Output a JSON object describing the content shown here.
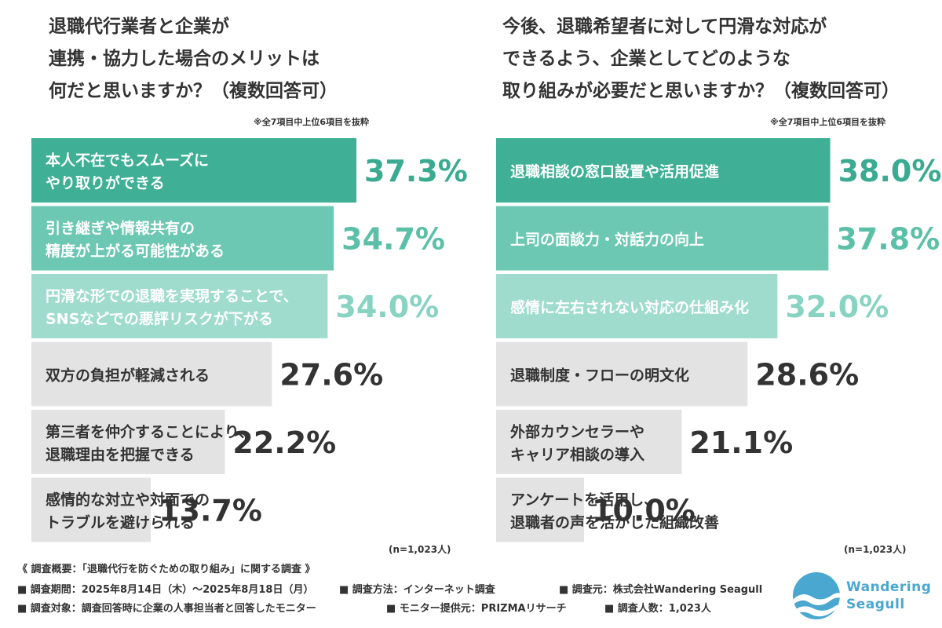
{
  "chart_data": [
    {
      "type": "bar",
      "orientation": "horizontal",
      "title": [
        "退職代行業者と企業が",
        "連携・協力した場合のメリットは",
        "何だと思いますか？（複数回答可）"
      ],
      "note": "※全7項目中上位6項目を抜粋",
      "categories": [
        [
          "本人不在でもスムーズに",
          "やり取りができる"
        ],
        [
          "引き継ぎや情報共有の",
          "精度が上がる可能性がある"
        ],
        [
          "円滑な形での退職を実現することで、",
          "SNSなどでの悪評リスクが下がる"
        ],
        [
          "双方の負担が軽減される"
        ],
        [
          "第三者を仲介することにより、",
          "退職理由を把握できる"
        ],
        [
          "感情的な対立や対面での",
          "トラブルを避けられる"
        ]
      ],
      "values": [
        37.3,
        34.7,
        34.0,
        27.6,
        22.2,
        13.7
      ],
      "value_labels": [
        "37.3%",
        "34.7%",
        "34.0%",
        "27.6%",
        "22.2%",
        "13.7%"
      ],
      "unit": "%",
      "sample": "(n=1,023人)"
    },
    {
      "type": "bar",
      "orientation": "horizontal",
      "title": [
        "今後、退職希望者に対して円滑な対応が",
        "できるよう、企業としてどのような",
        "取り組みが必要だと思いますか？（複数回答可）"
      ],
      "note": "※全7項目中上位6項目を抜粋",
      "categories": [
        [
          "退職相談の窓口設置や活用促進"
        ],
        [
          "上司の面談力・対話力の向上"
        ],
        [
          "感情に左右されない対応の仕組み化"
        ],
        [
          "退職制度・フローの明文化"
        ],
        [
          "外部カウンセラーや",
          "キャリア相談の導入"
        ],
        [
          "アンケートを活用し、",
          "退職者の声を活かした組織改善"
        ]
      ],
      "values": [
        38.0,
        37.8,
        32.0,
        28.6,
        21.1,
        10.0
      ],
      "value_labels": [
        "38.0%",
        "37.8%",
        "32.0%",
        "28.6%",
        "21.1%",
        "10.0%"
      ],
      "unit": "%",
      "sample": "(n=1,023人)"
    }
  ],
  "colors": {
    "rank1": "#3faf95",
    "rank2": "#6cc8b2",
    "rank3": "#9fdccd",
    "rank_other": "#e3e3e3",
    "text_dark": "#333333",
    "text_on_dark": "#ffffff",
    "value_rank1": "#3aaa91",
    "value_rank2": "#5cc0a8",
    "value_rank3": "#88d3c2",
    "value_other": "#333333",
    "logo": "#4aa7cf"
  },
  "footer": {
    "survey_title": "《 調査概要：「退職代行を防ぐための取り組み」に関する調査 》",
    "period": "■ 調査期間：2025年8月14日（木）〜2025年8月18日（月）",
    "method": "■ 調査方法：インターネット調査",
    "source": "■ 調査元：株式会社Wandering Seagull",
    "target": "■ 調査対象：調査回答時に企業の人事担当者と回答したモニター",
    "provider": "■ モニター提供元：PRIZMAリサーチ",
    "count": "■ 調査人数：1,023人"
  },
  "logo": {
    "line1": "Wandering",
    "line2": "Seagull",
    "icon": "wave-circle-icon"
  }
}
